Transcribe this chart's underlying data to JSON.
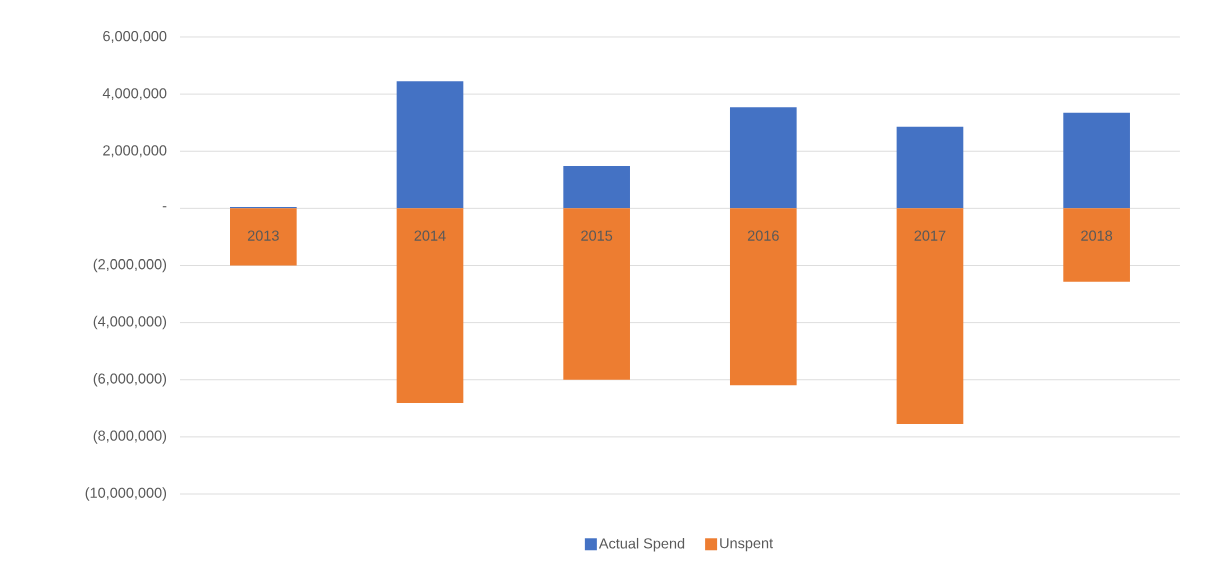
{
  "chart_data": {
    "type": "bar",
    "stacked": true,
    "categories": [
      "2013",
      "2014",
      "2015",
      "2016",
      "2017",
      "2018"
    ],
    "series": [
      {
        "name": "Actual Spend",
        "color": "#4472c4",
        "values": [
          50000,
          4450000,
          1480000,
          3540000,
          2860000,
          3350000
        ]
      },
      {
        "name": "Unspent",
        "color": "#ed7d31",
        "values": [
          -2000000,
          -6810000,
          -6000000,
          -6190000,
          -7550000,
          -2570000
        ]
      }
    ],
    "ylim": [
      -10000000,
      6000000
    ],
    "yticks": [
      {
        "value": -10000000,
        "label": "(10,000,000)"
      },
      {
        "value": -8000000,
        "label": "(8,000,000)"
      },
      {
        "value": -6000000,
        "label": "(6,000,000)"
      },
      {
        "value": -4000000,
        "label": "(4,000,000)"
      },
      {
        "value": -2000000,
        "label": "(2,000,000)"
      },
      {
        "value": 0,
        "label": "-"
      },
      {
        "value": 2000000,
        "label": "2,000,000"
      },
      {
        "value": 4000000,
        "label": "4,000,000"
      },
      {
        "value": 6000000,
        "label": "6,000,000"
      }
    ],
    "grid": "y",
    "legend": "bottom"
  }
}
